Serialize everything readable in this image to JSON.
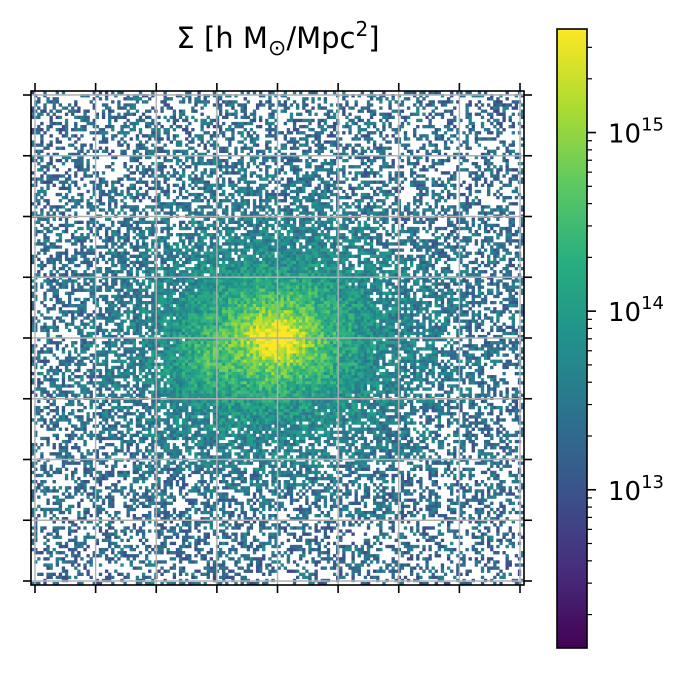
{
  "chart_data": {
    "type": "heatmap",
    "title_parts": {
      "prefix": "Σ [h M",
      "subscript": "⊙",
      "middle": "/Mpc",
      "superscript": "2",
      "suffix": "]"
    },
    "xlabel": "",
    "ylabel": "",
    "x_ticks": [
      "",
      "",
      "",
      "",
      "",
      "",
      "",
      "",
      ""
    ],
    "y_ticks": [
      "",
      "",
      "",
      "",
      "",
      "",
      "",
      "",
      ""
    ],
    "grid": true,
    "colormap": "viridis",
    "colorbar": {
      "scale": "log",
      "range": [
        1300000000000.0,
        3800000000000000.0
      ],
      "major_ticks": [
        {
          "base": "10",
          "exponent": "13",
          "value": 10000000000000.0
        },
        {
          "base": "10",
          "exponent": "14",
          "value": 100000000000000.0
        },
        {
          "base": "10",
          "exponent": "15",
          "value": 1000000000000000.0
        }
      ]
    },
    "structure": {
      "grid_resolution": 160,
      "background_log_density": 13.2,
      "peak_log_density": 15.6,
      "core": {
        "x": 0.5,
        "y": 0.5
      },
      "substructure": {
        "x": 0.35,
        "y": 0.55
      },
      "empty_fraction_outskirts": 0.55
    }
  }
}
